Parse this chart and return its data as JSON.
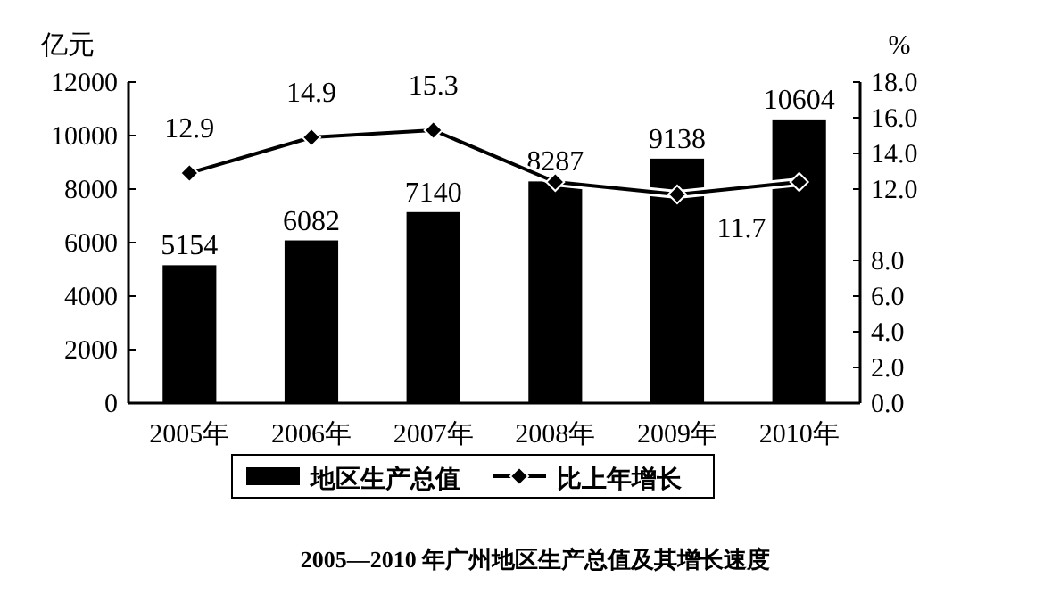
{
  "chart_data": {
    "type": "bar",
    "title": "2005—2010 年广州地区生产总值及其增长速度",
    "categories": [
      "2005年",
      "2006年",
      "2007年",
      "2008年",
      "2009年",
      "2010年"
    ],
    "ylabel": "亿元",
    "y2label": "%",
    "ylim": [
      0,
      12000
    ],
    "yticks": [
      0,
      2000,
      4000,
      6000,
      8000,
      10000,
      12000
    ],
    "y2lim": [
      0,
      18
    ],
    "y2ticks": [
      {
        "value": 0,
        "label": "0.0"
      },
      {
        "value": 2,
        "label": "2.0"
      },
      {
        "value": 4,
        "label": "4.0"
      },
      {
        "value": 6,
        "label": "6.0"
      },
      {
        "value": 8,
        "label": "8.0"
      },
      {
        "value": 12,
        "label": "12.0"
      },
      {
        "value": 14,
        "label": "14.0"
      },
      {
        "value": 16,
        "label": "16.0"
      },
      {
        "value": 18,
        "label": "18.0"
      }
    ],
    "legend": "bottom",
    "marker": "diamond",
    "grid": false,
    "series": [
      {
        "name": "地区生产总值",
        "color": "#000000",
        "values": [
          5154,
          6082,
          7140,
          8287,
          9138,
          10604
        ],
        "value_labels": [
          "5154",
          "6082",
          "7140",
          "8287",
          "9138",
          "10604"
        ]
      },
      {
        "name": "比上年增长",
        "type": "line",
        "axis": "y2",
        "color": "#000000",
        "values": [
          12.9,
          14.9,
          15.3,
          12.4,
          11.7,
          12.4
        ],
        "value_labels": [
          "12.9",
          "14.9",
          "15.3",
          null,
          "11.7",
          null
        ]
      }
    ]
  }
}
